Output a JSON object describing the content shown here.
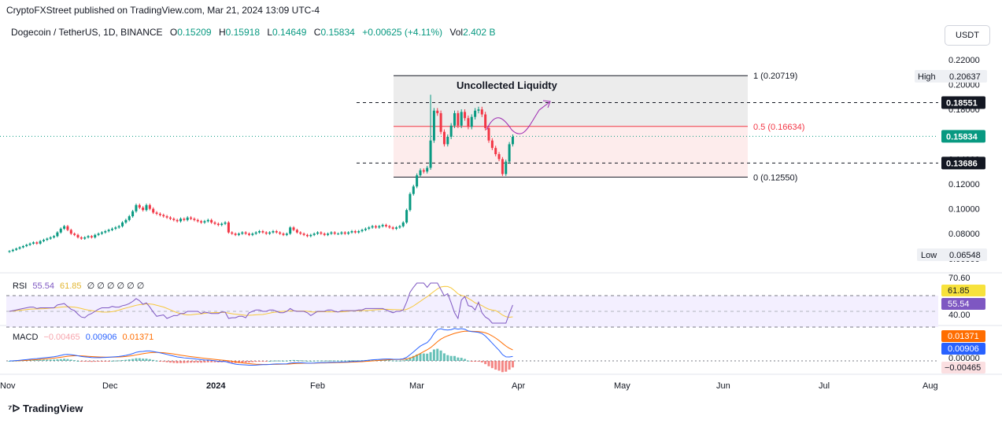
{
  "header": {
    "published": "CryptoFXStreet published on TradingView.com, Mar 21, 2024 13:09 UTC-4",
    "symbol": "Dogecoin / TetherUS, 1D, BINANCE",
    "open_label": "O",
    "open": "0.15209",
    "high_label": "H",
    "high": "0.15918",
    "low_label": "L",
    "low": "0.14649",
    "close_label": "C",
    "close": "0.15834",
    "change": "+0.00625 (+4.11%)",
    "vol_label": "Vol",
    "vol": "2.402 B",
    "currency": "USDT"
  },
  "footer": {
    "logo_text": "TradingView"
  },
  "colors": {
    "up": "#089981",
    "down": "#f23645",
    "rsi": "#7e57c2",
    "rsi_ma": "#f7c83c",
    "macd": "#2962ff",
    "signal": "#ff6d00",
    "annotation": "#9c27b0"
  },
  "chart_data": [
    {
      "type": "candlestick",
      "price_axis": [
        "0.22000",
        "0.20000",
        "0.18000",
        "0.16000",
        "0.14000",
        "0.12000",
        "0.10000",
        "0.08000",
        "0.06000"
      ],
      "time_axis": [
        "Nov",
        "Dec",
        "2024",
        "Feb",
        "Mar",
        "Apr",
        "May",
        "Jun",
        "Jul",
        "Aug"
      ],
      "ylim": [
        0.055,
        0.224
      ],
      "last_price": "0.15834",
      "high_label": "High",
      "high_value": "0.20637",
      "low_label": "Low",
      "low_value": "0.06548",
      "levels": [
        {
          "label": "0.18551",
          "value": 0.18551
        },
        {
          "label": "0.13686",
          "value": 0.13686
        }
      ],
      "fib": [
        {
          "label": "1 (0.20719)",
          "value": 0.20719
        },
        {
          "label": "0.5 (0.16634)",
          "value": 0.16634
        },
        {
          "label": "0 (0.12550)",
          "value": 0.1255
        }
      ],
      "annotation": "Uncollected Liquidty",
      "closes": [
        0.066,
        0.067,
        0.068,
        0.069,
        0.07,
        0.071,
        0.072,
        0.073,
        0.072,
        0.074,
        0.075,
        0.076,
        0.077,
        0.078,
        0.081,
        0.084,
        0.086,
        0.083,
        0.08,
        0.079,
        0.077,
        0.076,
        0.077,
        0.078,
        0.077,
        0.079,
        0.08,
        0.081,
        0.082,
        0.083,
        0.084,
        0.085,
        0.086,
        0.089,
        0.091,
        0.094,
        0.098,
        0.103,
        0.101,
        0.099,
        0.103,
        0.1,
        0.097,
        0.096,
        0.095,
        0.094,
        0.093,
        0.092,
        0.091,
        0.09,
        0.092,
        0.091,
        0.093,
        0.092,
        0.091,
        0.09,
        0.089,
        0.09,
        0.091,
        0.089,
        0.088,
        0.087,
        0.088,
        0.089,
        0.081,
        0.08,
        0.079,
        0.08,
        0.081,
        0.08,
        0.079,
        0.08,
        0.081,
        0.082,
        0.081,
        0.08,
        0.081,
        0.082,
        0.081,
        0.08,
        0.079,
        0.08,
        0.085,
        0.083,
        0.081,
        0.08,
        0.079,
        0.078,
        0.079,
        0.08,
        0.081,
        0.08,
        0.079,
        0.08,
        0.081,
        0.08,
        0.08,
        0.081,
        0.08,
        0.081,
        0.082,
        0.081,
        0.082,
        0.083,
        0.084,
        0.085,
        0.086,
        0.085,
        0.086,
        0.087,
        0.086,
        0.085,
        0.084,
        0.085,
        0.086,
        0.089,
        0.099,
        0.112,
        0.118,
        0.127,
        0.131,
        0.13,
        0.133,
        0.155,
        0.179,
        0.177,
        0.162,
        0.152,
        0.158,
        0.167,
        0.177,
        0.167,
        0.178,
        0.173,
        0.166,
        0.174,
        0.179,
        0.18,
        0.176,
        0.165,
        0.155,
        0.149,
        0.144,
        0.14,
        0.128,
        0.138,
        0.152,
        0.158
      ]
    },
    {
      "type": "line",
      "name": "RSI",
      "legend": "RSI",
      "values_text": [
        "55.54",
        "61.85"
      ],
      "extra": "∅ ∅ ∅ ∅ ∅ ∅",
      "axis": [
        "70.60",
        "40.00"
      ],
      "last_rsi": "55.54",
      "last_ma": "61.85",
      "ylim": [
        20,
        80
      ]
    },
    {
      "type": "line",
      "name": "MACD",
      "legend": "MACD",
      "values_text": [
        "−0.00465",
        "0.00906",
        "0.01371"
      ],
      "axis": [
        "0.00000"
      ],
      "last_macd": "0.00906",
      "last_signal": "0.01371",
      "last_hist": "−0.00465"
    }
  ]
}
